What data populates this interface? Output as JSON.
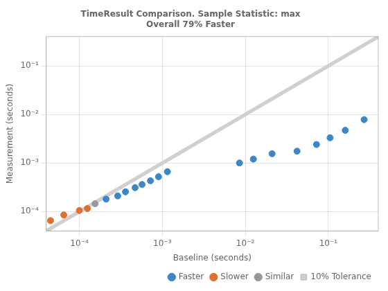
{
  "chart_data": {
    "type": "scatter",
    "title": "TimeResult Comparison. Sample Statistic: max",
    "subtitle": "Overall 79% Faster",
    "xlabel": "Baseline (seconds)",
    "ylabel": "Measurement (seconds)",
    "log": true,
    "grid": true,
    "legend": "lower right",
    "xlim": [
      4e-05,
      0.4
    ],
    "ylim": [
      4e-05,
      0.4
    ],
    "xticks": [
      {
        "value": 0.0001,
        "label": "10⁻⁴"
      },
      {
        "value": 0.001,
        "label": "10⁻³"
      },
      {
        "value": 0.01,
        "label": "10⁻²"
      },
      {
        "value": 0.1,
        "label": "10⁻¹"
      }
    ],
    "yticks": [
      {
        "value": 0.0001,
        "label": "10⁻⁴"
      },
      {
        "value": 0.001,
        "label": "10⁻³"
      },
      {
        "value": 0.01,
        "label": "10⁻²"
      },
      {
        "value": 0.1,
        "label": "10⁻¹"
      }
    ],
    "series": [
      {
        "name": "Faster",
        "color": "#3c87c8",
        "x": [
          0.00021,
          0.00029,
          0.00036,
          0.00047,
          0.00057,
          0.00072,
          0.0009,
          0.00115,
          0.0085,
          0.0125,
          0.021,
          0.042,
          0.072,
          0.105,
          0.16,
          0.27
        ],
        "values": [
          0.00018,
          0.00021,
          0.000255,
          0.00031,
          0.00036,
          0.00043,
          0.00052,
          0.00066,
          0.001,
          0.0012,
          0.00155,
          0.00175,
          0.0024,
          0.0033,
          0.0047,
          0.0078
        ]
      },
      {
        "name": "Slower",
        "color": "#e07030",
        "x": [
          4.5e-05,
          6.5e-05,
          0.0001,
          0.000125
        ],
        "values": [
          6.5e-05,
          8.5e-05,
          0.000105,
          0.000115
        ]
      },
      {
        "name": "Similar",
        "color": "#999999",
        "x": [
          0.000155
        ],
        "values": [
          0.000145
        ]
      },
      {
        "name": "10% Tolerance",
        "type": "band",
        "color": "#d0d0d0",
        "tolerance": 0.1
      }
    ]
  }
}
